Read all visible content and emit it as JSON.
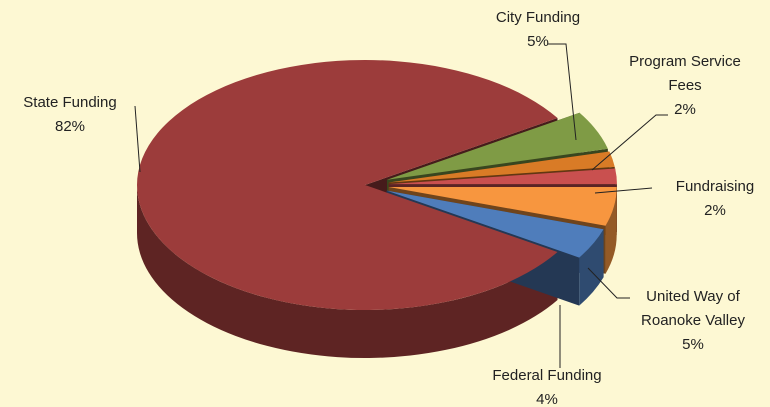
{
  "chart_data": {
    "type": "pie",
    "categories": [
      "State Funding",
      "City Funding",
      "Program Service Fees",
      "Fundraising",
      "United Way of Roanoke Valley",
      "Federal Funding"
    ],
    "values": [
      82,
      5,
      2,
      2,
      5,
      4
    ],
    "value_labels": [
      "82%",
      "5%",
      "2%",
      "2%",
      "5%",
      "4%"
    ],
    "colors": [
      "#9c3c3b",
      "#7f9b45",
      "#d97b26",
      "#c9504f",
      "#f7963f",
      "#4f7dbb"
    ]
  }
}
